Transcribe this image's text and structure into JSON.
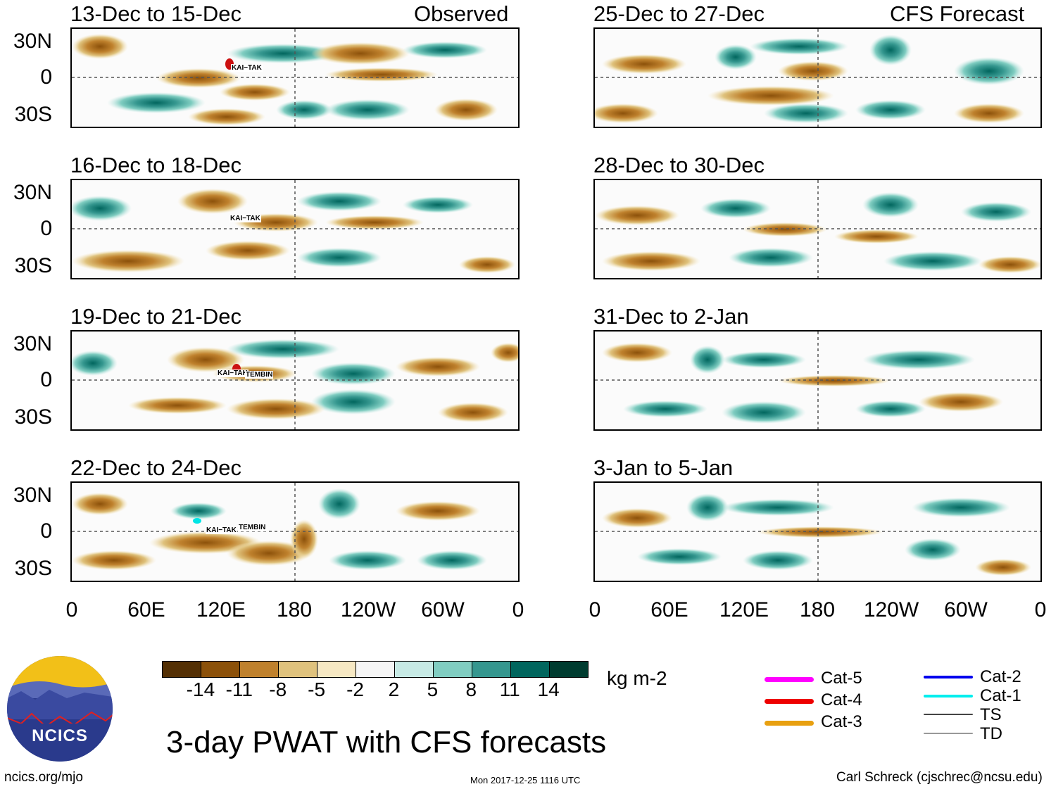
{
  "title": "3-day PWAT with CFS forecasts",
  "observed_label": "Observed",
  "forecast_label": "CFS Forecast",
  "panels": {
    "left": [
      "13-Dec to 15-Dec",
      "16-Dec to 18-Dec",
      "19-Dec to 21-Dec",
      "22-Dec to 24-Dec"
    ],
    "right": [
      "25-Dec to 27-Dec",
      "28-Dec to 30-Dec",
      "31-Dec to 2-Jan",
      "3-Jan to 5-Jan"
    ]
  },
  "lat_ticks": [
    "30N",
    "0",
    "30S"
  ],
  "lon_ticks": [
    "0",
    "60E",
    "120E",
    "180",
    "120W",
    "60W",
    "0"
  ],
  "storms": {
    "p0": "KAI−TAK",
    "p1": "KAI−TAK",
    "p2": "KAI−TAK",
    "p2b": "TEMBIN",
    "p3": "KAI−TAK",
    "p3b": "TEMBIN"
  },
  "colorbar": {
    "unit": "kg m-2",
    "labels": [
      "-14",
      "-11",
      "-8",
      "-5",
      "-2",
      "2",
      "5",
      "8",
      "11",
      "14"
    ],
    "colors": [
      "#543005",
      "#8c510a",
      "#bf812d",
      "#dfc27d",
      "#f6e8c3",
      "#f5f5f5",
      "#c7eae5",
      "#80cdc1",
      "#35978f",
      "#01665e",
      "#003c30"
    ]
  },
  "legend": {
    "items": [
      {
        "label": "Cat-5",
        "color": "#ff00ff"
      },
      {
        "label": "Cat-4",
        "color": "#ee0000"
      },
      {
        "label": "Cat-3",
        "color": "#e8a010"
      },
      {
        "label": "Cat-2",
        "color": "#0000ee"
      },
      {
        "label": "Cat-1",
        "color": "#00eeee"
      },
      {
        "label": "TS",
        "color": "#444444"
      },
      {
        "label": "TD",
        "color": "#999999"
      }
    ]
  },
  "logo_text": "NCICS",
  "footer": {
    "url": "ncics.org/mjo",
    "timestamp": "Mon 2017-12-25 1116 UTC",
    "author": "Carl Schreck (cjschrec@ncsu.edu)"
  }
}
